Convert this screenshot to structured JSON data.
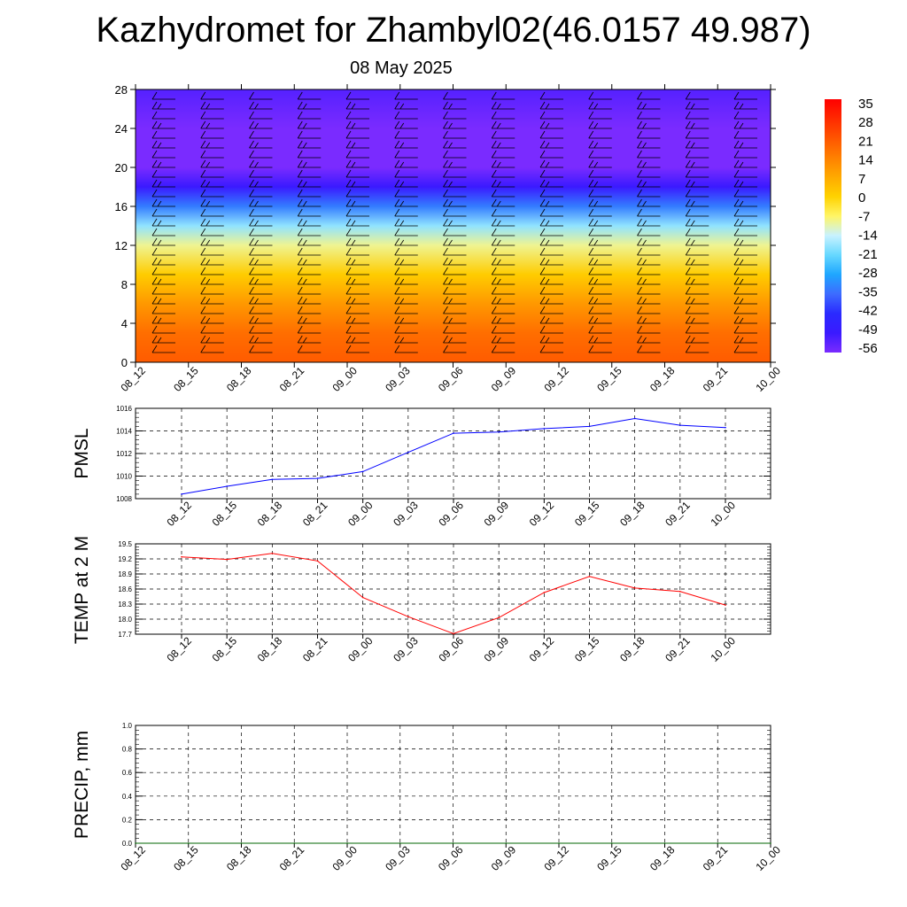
{
  "title": "Kazhydromet for Zhambyl02(46.0157 49.987)",
  "subtitle": "08 May 2025",
  "time_labels": [
    "08_12",
    "08_15",
    "08_18",
    "08_21",
    "09_00",
    "09_03",
    "09_06",
    "09_09",
    "09_12",
    "09_15",
    "09_18",
    "09_21",
    "10_00"
  ],
  "colors": {
    "pmsl_line": "#0000ff",
    "temp_line": "#ff0000",
    "precip_line": "#006400",
    "grid": "#000000"
  },
  "chart_data": [
    {
      "type": "heatmap",
      "title": "",
      "x": [
        "08_12",
        "08_15",
        "08_18",
        "08_21",
        "09_00",
        "09_03",
        "09_06",
        "09_09",
        "09_12",
        "09_15",
        "09_18",
        "09_21",
        "10_00"
      ],
      "ylim": [
        0,
        28
      ],
      "y_ticks": [
        "0",
        "4",
        "8",
        "12",
        "16",
        "20",
        "24",
        "28"
      ],
      "colorbar_labels": [
        "35",
        "28",
        "21",
        "14",
        "7",
        "0",
        "-7",
        "-14",
        "-21",
        "-28",
        "-35",
        "-42",
        "-49",
        "-56"
      ],
      "colorbar_colors": [
        "#ff0000",
        "#ff2a00",
        "#ff5500",
        "#ff8000",
        "#ffaa00",
        "#ffd200",
        "#fff566",
        "#c8f2ff",
        "#66d8ff",
        "#1ea6ff",
        "#3d6bff",
        "#2a2aff",
        "#3a1aff",
        "#7a2bff"
      ],
      "profile": [
        {
          "level": 0,
          "value": 20
        },
        {
          "level": 3,
          "value": 17
        },
        {
          "level": 6,
          "value": 10
        },
        {
          "level": 9,
          "value": 1
        },
        {
          "level": 12,
          "value": -9
        },
        {
          "level": 14,
          "value": -18
        },
        {
          "level": 16,
          "value": -33
        },
        {
          "level": 18,
          "value": -49
        },
        {
          "level": 20,
          "value": -57
        },
        {
          "level": 22,
          "value": -58
        },
        {
          "level": 24,
          "value": -56
        },
        {
          "level": 26,
          "value": -54
        },
        {
          "level": 28,
          "value": -52
        }
      ],
      "wind_barbs": "black wind barbs at every time step and level"
    },
    {
      "type": "line",
      "ylabel": "PMSL",
      "x": [
        "08_12",
        "08_15",
        "08_18",
        "08_21",
        "09_00",
        "09_03",
        "09_06",
        "09_09",
        "09_12",
        "09_15",
        "09_18",
        "09_21",
        "10_00"
      ],
      "series": [
        {
          "values": [
            1008.4,
            1009.1,
            1009.7,
            1009.8,
            1010.4,
            1012.1,
            1013.8,
            1013.9,
            1014.2,
            1014.4,
            1015.1,
            1014.5,
            1014.3
          ]
        }
      ],
      "ylim": [
        1008,
        1016
      ],
      "y_ticks": [
        "1008",
        "1010",
        "1012",
        "1014",
        "1016"
      ],
      "grid": true
    },
    {
      "type": "line",
      "ylabel": "TEMP at 2 M",
      "x": [
        "08_12",
        "08_15",
        "08_18",
        "08_21",
        "09_00",
        "09_03",
        "09_06",
        "09_09",
        "09_12",
        "09_15",
        "09_18",
        "09_21",
        "10_00"
      ],
      "series": [
        {
          "values": [
            19.24,
            19.19,
            19.31,
            19.16,
            18.43,
            18.05,
            17.71,
            18.03,
            18.53,
            18.85,
            18.62,
            18.55,
            18.28
          ]
        }
      ],
      "ylim": [
        17.7,
        19.5
      ],
      "y_ticks": [
        "17.7",
        "18.0",
        "18.3",
        "18.6",
        "18.9",
        "19.2",
        "19.5"
      ],
      "grid": true
    },
    {
      "type": "line",
      "ylabel": "PRECIP, mm",
      "x": [
        "08_12",
        "08_15",
        "08_18",
        "08_21",
        "09_00",
        "09_03",
        "09_06",
        "09_09",
        "09_12",
        "09_15",
        "09_18",
        "09_21",
        "10_00"
      ],
      "series": [
        {
          "values": [
            0,
            0,
            0,
            0,
            0,
            0,
            0,
            0,
            0,
            0,
            0,
            0,
            0
          ]
        }
      ],
      "ylim": [
        0,
        1
      ],
      "y_ticks": [
        "0.0",
        "0.2",
        "0.4",
        "0.6",
        "0.8",
        "1.0"
      ],
      "grid": true
    }
  ]
}
